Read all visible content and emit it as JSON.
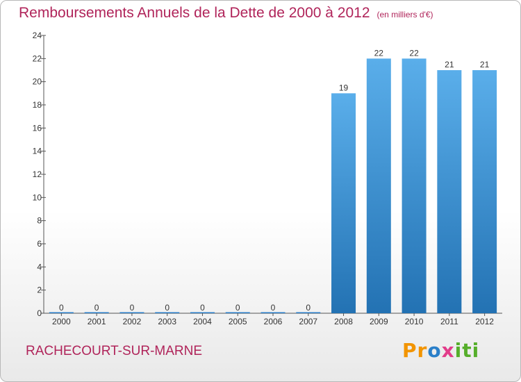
{
  "chart_data": {
    "type": "bar",
    "title": "Remboursements Annuels de la Dette de 2000 à 2012",
    "subtitle": "(en milliers d'€)",
    "categories": [
      "2000",
      "2001",
      "2002",
      "2003",
      "2004",
      "2005",
      "2006",
      "2007",
      "2008",
      "2009",
      "2010",
      "2011",
      "2012"
    ],
    "values": [
      0,
      0,
      0,
      0,
      0,
      0,
      0,
      0,
      19,
      22,
      22,
      21,
      21
    ],
    "data_labels": [
      "0",
      "0",
      "0",
      "0",
      "0",
      "0",
      "0",
      "0",
      "19",
      "22",
      "22",
      "21",
      "21"
    ],
    "yticks": [
      "0",
      "2",
      "4",
      "6",
      "8",
      "10",
      "12",
      "14",
      "16",
      "18",
      "20",
      "22",
      "24"
    ],
    "ylim": [
      0,
      24
    ],
    "grid": false,
    "bar_color": "#3a8fd6"
  },
  "footer": {
    "city": "RACHECOURT-SUR-MARNE",
    "logo_parts": [
      "Pr",
      "o",
      "x",
      "iti"
    ]
  }
}
